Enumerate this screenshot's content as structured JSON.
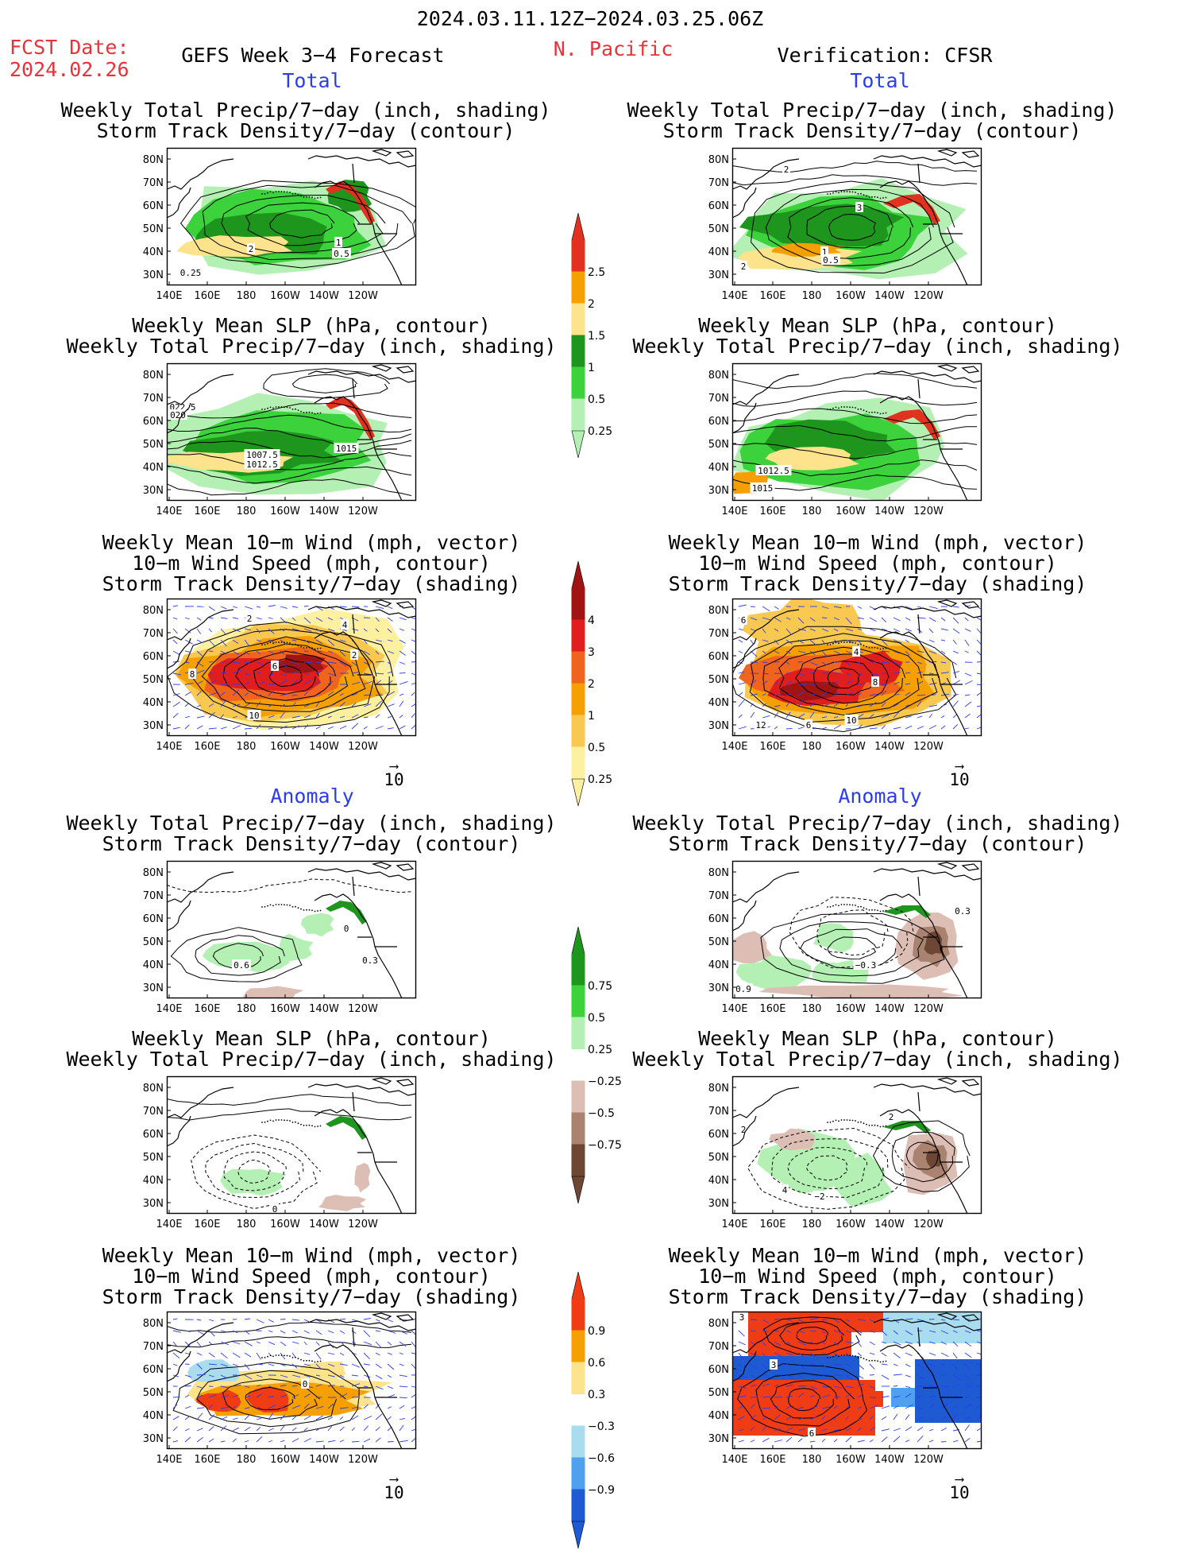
{
  "header": {
    "period": "2024.03.11.12Z−2024.03.25.06Z",
    "fcst_label": "FCST Date:",
    "fcst_date": "2024.02.26",
    "forecast_title": "GEFS Week 3−4 Forecast",
    "region": "N. Pacific",
    "verification": "Verification: CFSR"
  },
  "sections": {
    "total": "Total",
    "anomaly": "Anomaly"
  },
  "panel_titles": {
    "precip_storm": [
      "Weekly Total Precip/7−day (inch, shading)",
      "Storm Track Density/7−day (contour)"
    ],
    "slp_precip": [
      "Weekly Mean SLP (hPa, contour)",
      "Weekly Total Precip/7−day (inch, shading)"
    ],
    "wind_storm": [
      "Weekly Mean 10−m Wind (mph, vector)",
      "10−m Wind Speed (mph, contour)",
      "Storm Track Density/7−day (shading)"
    ]
  },
  "axes": {
    "lat_ticks": [
      "80N",
      "70N",
      "60N",
      "50N",
      "40N",
      "30N"
    ],
    "lon_ticks": [
      "140E",
      "160E",
      "180",
      "160W",
      "140W",
      "120W"
    ]
  },
  "vector_reference": "10",
  "colorbars": {
    "precip_total": {
      "labels": [
        "2.5",
        "2",
        "1.5",
        "1",
        "0.5",
        "0.25"
      ],
      "colors": [
        "#e0321e",
        "#f5a000",
        "#fde38c",
        "#1e961e",
        "#3cd23c",
        "#b4f0b4"
      ]
    },
    "storm_total": {
      "labels": [
        "4",
        "3",
        "2",
        "1",
        "0.5",
        "0.25"
      ],
      "colors": [
        "#a01414",
        "#e01e1e",
        "#f0641e",
        "#f5a000",
        "#f8c850",
        "#fdf0a0"
      ]
    },
    "precip_anom": {
      "labels": [
        "0.75",
        "0.5",
        "0.25",
        "−0.25",
        "−0.5",
        "−0.75"
      ],
      "colors": [
        "#1e961e",
        "#3cd23c",
        "#b4f0b4",
        "#ffffff",
        "#dcbeb4",
        "#aa8270",
        "#6e4634"
      ]
    },
    "storm_anom": {
      "labels": [
        "0.9",
        "0.6",
        "0.3",
        "−0.3",
        "−0.6",
        "−0.9"
      ],
      "colors": [
        "#f03c14",
        "#f5a000",
        "#fde38c",
        "#ffffff",
        "#aadcf0",
        "#50a0f0",
        "#1e5ad2"
      ]
    }
  },
  "contour_labels": {
    "f_tot_precip": [
      "2",
      "1",
      "0.5",
      "0.25"
    ],
    "v_tot_precip": [
      "2",
      "3",
      "1",
      "0.5",
      "2"
    ],
    "f_tot_slp": [
      "022.5",
      "020",
      "1007.5",
      "1012.5",
      "1015"
    ],
    "v_tot_slp": [
      "1012.5",
      "1015"
    ],
    "f_tot_wind": [
      "2",
      "6",
      "8",
      "10",
      "4",
      "2"
    ],
    "v_tot_wind": [
      "6",
      "4",
      "8",
      "10",
      "12",
      "6"
    ],
    "f_anom_precip": [
      "0.6",
      "0",
      "0.3"
    ],
    "v_anom_precip": [
      "0.3",
      "−0.3",
      "0.9"
    ],
    "f_anom_slp": [
      "0"
    ],
    "v_anom_slp": [
      "2",
      "2",
      "−2",
      "4"
    ],
    "f_anom_wind": [
      "0"
    ],
    "v_anom_wind": [
      "3",
      "6",
      "3"
    ]
  }
}
